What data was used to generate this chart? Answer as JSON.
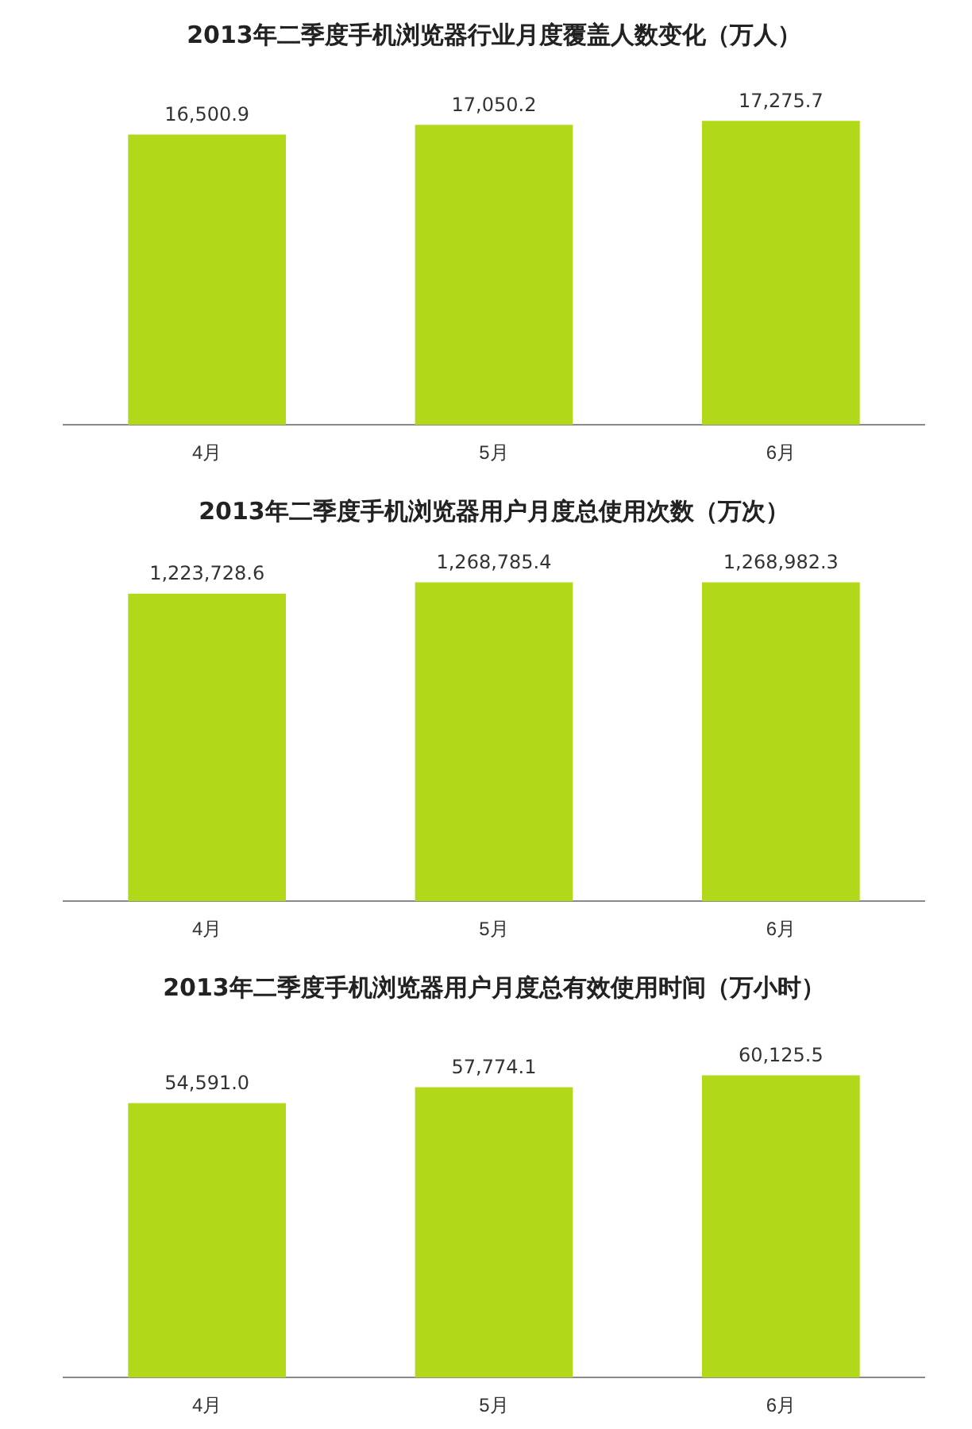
{
  "chart_data": [
    {
      "type": "bar",
      "title": "2013年二季度手机浏览器行业月度覆盖人数变化（万人）",
      "categories": [
        "4月",
        "5月",
        "6月"
      ],
      "values": [
        16500.9,
        17050.2,
        17275.7
      ],
      "value_labels": [
        "16,500.9",
        "17,050.2",
        "17,275.7"
      ],
      "color": "#b1d91a"
    },
    {
      "type": "bar",
      "title": "2013年二季度手机浏览器用户月度总使用次数（万次）",
      "categories": [
        "4月",
        "5月",
        "6月"
      ],
      "values": [
        1223728.6,
        1268785.4,
        1268982.3
      ],
      "value_labels": [
        "1,223,728.6",
        "1,268,785.4",
        "1,268,982.3"
      ],
      "color": "#b1d91a"
    },
    {
      "type": "bar",
      "title": "2013年二季度手机浏览器用户月度总有效使用时间（万小时）",
      "categories": [
        "4月",
        "5月",
        "6月"
      ],
      "values": [
        54591.0,
        57774.1,
        60125.5
      ],
      "value_labels": [
        "54,591.0",
        "57,774.1",
        "60,125.5"
      ],
      "color": "#b1d91a"
    }
  ]
}
